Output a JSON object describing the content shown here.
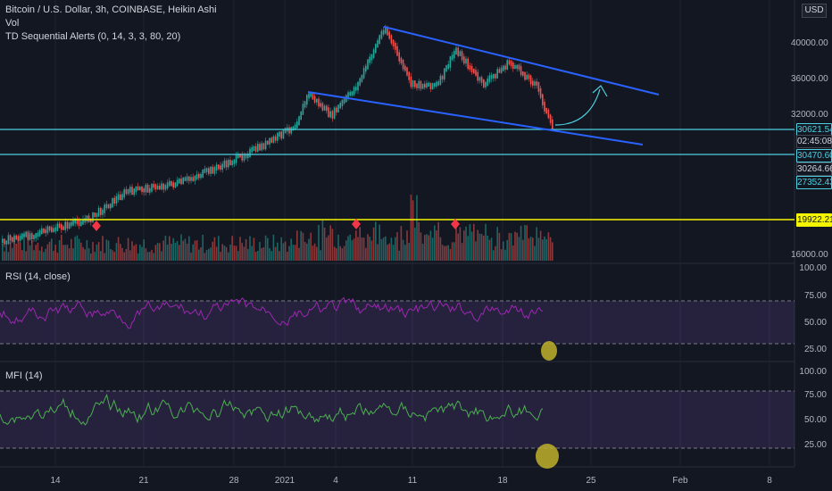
{
  "legend": {
    "symbol": "Bitcoin / U.S. Dollar, 3h, COINBASE, Heikin Ashi",
    "vol": "Vol",
    "td": "TD Sequential Alerts (0, 14, 3, 3, 80, 20)"
  },
  "currency_button": "USD",
  "price_axis": {
    "ticks": [
      "40000.00",
      "36000.00",
      "32000.00",
      "16000.00"
    ],
    "boxes": [
      {
        "text": "30621.54",
        "bg": "#131722",
        "fg": "#4dd0e1",
        "border": "#4dd0e1"
      },
      {
        "text": "02:45:08",
        "bg": "#131722",
        "fg": "#d1d4dc",
        "border": "#434651"
      },
      {
        "text": "30470.60",
        "bg": "#131722",
        "fg": "#4dd0e1",
        "border": "#4dd0e1"
      },
      {
        "text": "30264.66",
        "bg": "#131722",
        "fg": "#d1d4dc",
        "border": "#434651"
      },
      {
        "text": "27352.43",
        "bg": "#131722",
        "fg": "#4dd0e1",
        "border": "#4dd0e1"
      },
      {
        "text": "19922.21",
        "bg": "#f5f500",
        "fg": "#131722",
        "border": "#f5f500"
      }
    ]
  },
  "rsi": {
    "title": "RSI (14, close)",
    "ticks": [
      "100.00",
      "75.00",
      "50.00",
      "25.00"
    ]
  },
  "mfi": {
    "title": "MFI (14)",
    "ticks": [
      "100.00",
      "75.00",
      "50.00",
      "25.00"
    ]
  },
  "time_axis": [
    "14",
    "21",
    "28",
    "2021",
    "4",
    "11",
    "18",
    "25",
    "Feb",
    "8"
  ],
  "colors": {
    "background": "#131722",
    "bull": "#26a69a",
    "bear": "#ef5350",
    "trendline": "#2962ff",
    "support": "#4dd0e1",
    "yellow_line": "#f5f500",
    "rsi": "#9c27b0",
    "mfi": "#4caf50",
    "highlight": "#c0b02c"
  }
}
